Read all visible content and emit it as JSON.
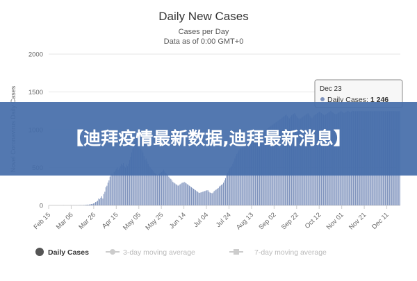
{
  "banner": {
    "text": "【迪拜疫情最新数据,迪拜最新消息】"
  },
  "chart_data": {
    "type": "bar",
    "title": "Daily New Cases",
    "subtitle_lines": [
      "Cases per Day",
      "Data as of 0:00 GMT+0"
    ],
    "ylabel": "Novel Coronavirus Daily Cases",
    "ylim": [
      0,
      2000
    ],
    "yticks": [
      0,
      500,
      1000,
      1500,
      2000
    ],
    "grid": true,
    "xlabels": [
      "Feb 15",
      "Mar 06",
      "Mar 26",
      "Apr 15",
      "May 05",
      "May 25",
      "Jun 14",
      "Jul 04",
      "Jul 24",
      "Aug 13",
      "Sep 02",
      "Sep 22",
      "Oct 12",
      "Nov 01",
      "Nov 21",
      "Dec 11"
    ],
    "first_date": "2020-02-15",
    "last_date": "2020-12-23",
    "tooltip": {
      "date": "Dec 23",
      "series": "Daily Cases",
      "value": "1 246"
    },
    "legend": [
      {
        "label": "Daily Cases",
        "color": "#555555",
        "active": true
      },
      {
        "label": "3-day moving average",
        "color": "#bbbbbb",
        "active": false
      },
      {
        "label": "7-day moving average",
        "color": "#bbbbbb",
        "active": false
      }
    ],
    "series": [
      {
        "name": "Daily Cases",
        "color": "#7f93bd",
        "values": [
          0,
          0,
          0,
          0,
          0,
          0,
          0,
          0,
          0,
          0,
          0,
          0,
          0,
          0,
          1,
          0,
          0,
          0,
          0,
          0,
          0,
          1,
          0,
          0,
          2,
          0,
          1,
          1,
          0,
          3,
          2,
          4,
          0,
          5,
          3,
          6,
          8,
          10,
          7,
          12,
          15,
          18,
          20,
          25,
          30,
          45,
          50,
          60,
          90,
          80,
          100,
          120,
          90,
          150,
          180,
          240,
          260,
          300,
          330,
          380,
          410,
          420,
          400,
          440,
          460,
          480,
          500,
          470,
          490,
          520,
          550,
          530,
          560,
          520,
          500,
          540,
          520,
          550,
          600,
          640,
          700,
          750,
          800,
          850,
          880,
          900,
          780,
          850,
          820,
          750,
          730,
          700,
          650,
          600,
          620,
          580,
          550,
          520,
          500,
          480,
          470,
          450,
          430,
          420,
          410,
          400,
          410,
          420,
          430,
          440,
          450,
          470,
          450,
          430,
          420,
          400,
          380,
          360,
          350,
          330,
          310,
          300,
          290,
          280,
          270,
          260,
          270,
          280,
          290,
          300,
          300,
          310,
          300,
          290,
          280,
          270,
          260,
          250,
          240,
          230,
          220,
          210,
          200,
          190,
          180,
          170,
          165,
          170,
          175,
          180,
          185,
          190,
          195,
          200,
          200,
          180,
          170,
          165,
          160,
          170,
          190,
          200,
          210,
          220,
          230,
          250,
          260,
          270,
          280,
          300,
          330,
          360,
          400,
          430,
          460,
          490,
          500,
          520,
          550,
          580,
          620,
          650,
          680,
          700,
          730,
          750,
          760,
          770,
          780,
          790,
          800,
          810,
          820,
          830,
          840,
          850,
          860,
          870,
          880,
          890,
          900,
          910,
          920,
          930,
          940,
          950,
          960,
          970,
          980,
          990,
          1000,
          1010,
          1020,
          1030,
          1040,
          1050,
          1060,
          1070,
          1080,
          1090,
          1100,
          1110,
          1120,
          1130,
          1140,
          1150,
          1160,
          1170,
          1180,
          1190,
          1200,
          1180,
          1160,
          1150,
          1170,
          1190,
          1200,
          1210,
          1220,
          1200,
          1180,
          1160,
          1150,
          1140,
          1150,
          1160,
          1170,
          1180,
          1190,
          1200,
          1210,
          1220,
          1200,
          1180,
          1160,
          1150,
          1170,
          1190,
          1200,
          1210,
          1220,
          1230,
          1240,
          1230,
          1220,
          1210,
          1200,
          1190,
          1200,
          1210,
          1220,
          1230,
          1240,
          1250,
          1240,
          1230,
          1220,
          1210,
          1200,
          1210,
          1220,
          1230,
          1240,
          1250,
          1240,
          1230,
          1220,
          1230,
          1240,
          1250,
          1246,
          1240,
          1230,
          1240,
          1250,
          1246,
          1246,
          1246,
          1246,
          1246,
          1246,
          1246,
          1246,
          1246,
          1246,
          1246,
          1246,
          1246,
          1246,
          1246,
          1246,
          1246,
          1246,
          1246,
          1246,
          1246,
          1246,
          1246,
          1246,
          1246,
          1246,
          1246,
          1246,
          1246,
          1246,
          1246,
          1246,
          1246,
          1246,
          1246,
          1246,
          1246,
          1246,
          1246,
          1246,
          1246,
          1246,
          1246,
          1246,
          1246,
          1246
        ]
      }
    ]
  }
}
